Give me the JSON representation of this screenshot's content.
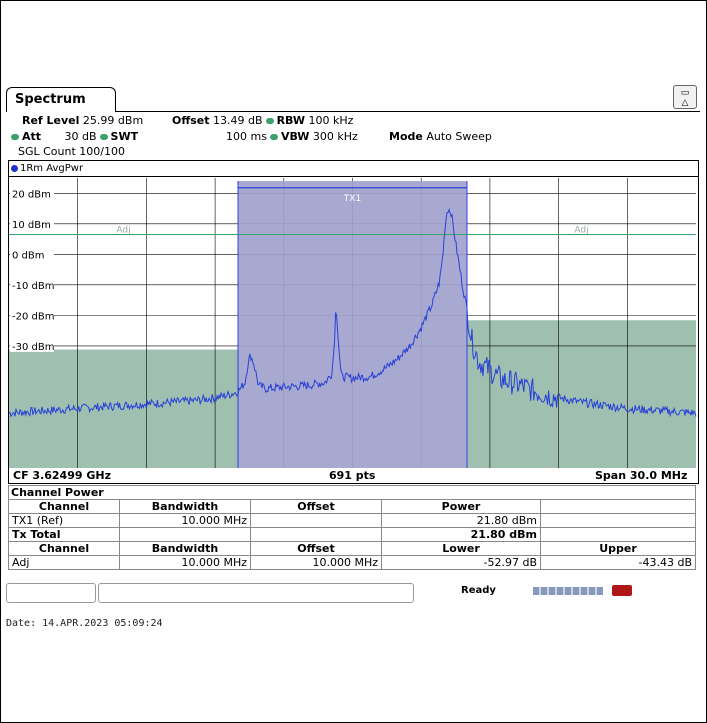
{
  "window": {
    "tab_title": "Spectrum"
  },
  "header": {
    "ref_level_label": "Ref Level",
    "ref_level_value": "25.99 dBm",
    "offset_label": "Offset",
    "offset_value": "13.49 dB",
    "rbw_label": "RBW",
    "rbw_value": "100 kHz",
    "att_label": "Att",
    "att_value": "30 dB",
    "swt_label": "SWT",
    "swt_value": "100 ms",
    "vbw_label": "VBW",
    "vbw_value": "300 kHz",
    "mode_label": "Mode",
    "mode_value": "Auto Sweep",
    "sgl_count": "SGL Count 100/100",
    "indicator_color": "#3aa36b"
  },
  "diagram": {
    "trace_label": "1Rm AvgPwr",
    "channel_label_tx": "TX1",
    "channel_label_adj_left": "Adj",
    "channel_label_adj_right": "Adj",
    "footer_left": "CF 3.62499 GHz",
    "footer_center": "691 pts",
    "footer_right": "Span 30.0 MHz",
    "colors": {
      "trace": "#2840d8",
      "tx_fill": "#a0a2cc",
      "adj_fill": "#9fc0b0",
      "limit_line": "#3aa36b"
    }
  },
  "chart_data": {
    "type": "line",
    "ylim": [
      -70,
      25
    ],
    "xlim": [
      -15,
      15
    ],
    "y_ticks": [
      "20 dBm",
      "10 dBm",
      "0 dBm",
      "-10 dBm",
      "-20 dBm",
      "-30 dBm"
    ],
    "y_tick_values": [
      20,
      10,
      0,
      -10,
      -20,
      -30
    ],
    "tx_channel": {
      "x": [
        -5,
        5
      ],
      "level": 21.8
    },
    "adj_left": {
      "x": [
        -15,
        -5
      ],
      "level": -31.2
    },
    "adj_right": {
      "x": [
        5,
        15
      ],
      "level": -21.6
    },
    "limit_line_dBm": 6.5,
    "series": [
      {
        "values": [
          [
            -15,
            -52
          ],
          [
            -14,
            -51.5
          ],
          [
            -13,
            -51
          ],
          [
            -12,
            -50.5
          ],
          [
            -11,
            -50
          ],
          [
            -10,
            -49.5
          ],
          [
            -9,
            -49
          ],
          [
            -8,
            -48.5
          ],
          [
            -7,
            -48
          ],
          [
            -6,
            -47
          ],
          [
            -5.4,
            -46
          ],
          [
            -5,
            -45
          ],
          [
            -4.7,
            -42
          ],
          [
            -4.55,
            -35
          ],
          [
            -4.45,
            -33
          ],
          [
            -4.3,
            -36
          ],
          [
            -4.1,
            -43
          ],
          [
            -3.8,
            -44
          ],
          [
            -3,
            -43.5
          ],
          [
            -2,
            -43
          ],
          [
            -1.2,
            -42
          ],
          [
            -0.9,
            -39
          ],
          [
            -0.8,
            -30
          ],
          [
            -0.72,
            -16
          ],
          [
            -0.62,
            -28
          ],
          [
            -0.5,
            -40
          ],
          [
            0,
            -40.5
          ],
          [
            0.8,
            -40
          ],
          [
            1.5,
            -37
          ],
          [
            2,
            -34
          ],
          [
            2.5,
            -30
          ],
          [
            3,
            -24
          ],
          [
            3.5,
            -16
          ],
          [
            3.8,
            -9
          ],
          [
            3.95,
            0
          ],
          [
            4.05,
            10
          ],
          [
            4.15,
            15
          ],
          [
            4.3,
            14
          ],
          [
            4.5,
            4
          ],
          [
            4.8,
            -10
          ],
          [
            5,
            -18
          ],
          [
            5.2,
            -28
          ],
          [
            5.5,
            -35
          ],
          [
            6,
            -38
          ],
          [
            6.5,
            -41
          ],
          [
            7,
            -42
          ],
          [
            7.5,
            -43.5
          ],
          [
            8,
            -45
          ],
          [
            9,
            -47
          ],
          [
            10,
            -48.5
          ],
          [
            11,
            -49.5
          ],
          [
            12,
            -50.5
          ],
          [
            13,
            -51
          ],
          [
            14,
            -51.5
          ],
          [
            15,
            -52
          ]
        ]
      }
    ]
  },
  "channel_power": {
    "title": "Channel Power",
    "headers": [
      "Channel",
      "Bandwidth",
      "Offset",
      "Power",
      ""
    ],
    "tx_row": [
      "TX1 (Ref)",
      "10.000 MHz",
      "",
      "21.80 dBm",
      ""
    ],
    "tx_total_label": "Tx Total",
    "tx_total_value": "21.80 dBm",
    "adj_headers": [
      "Channel",
      "Bandwidth",
      "Offset",
      "Lower",
      "Upper"
    ],
    "adj_row": [
      "Adj",
      "10.000 MHz",
      "10.000 MHz",
      "-52.97 dB",
      "-43.43 dB"
    ]
  },
  "status": {
    "ready": "Ready"
  },
  "date_line": "Date: 14.APR.2023  05:09:24"
}
